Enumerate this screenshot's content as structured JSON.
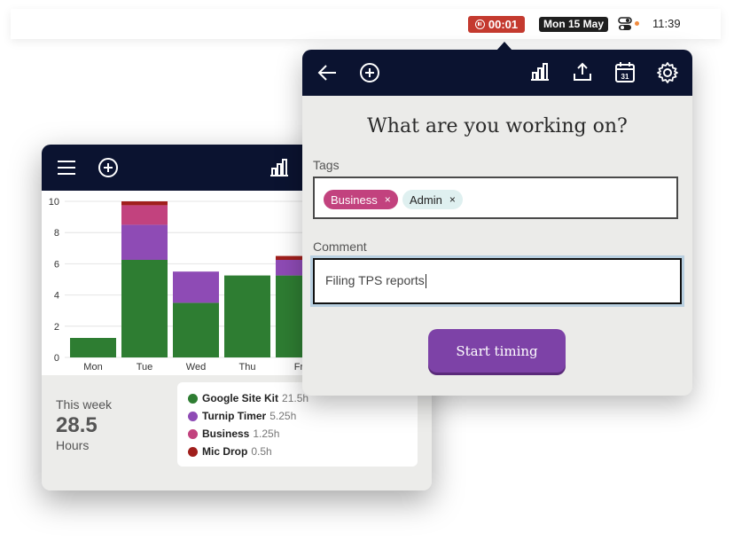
{
  "menubar": {
    "timer": "00:01",
    "date": "Mon 15 May",
    "time": "11:39",
    "icons": [
      "stop-timer-icon",
      "control-center-icon"
    ]
  },
  "back_window": {
    "toolbar_icons": [
      "menu-icon",
      "add-icon",
      "stats-icon"
    ],
    "summary": {
      "label": "This week",
      "value": "28.5",
      "unit": "Hours"
    },
    "legend": [
      {
        "name": "Google Site Kit",
        "hours": "21.5h",
        "color": "#2e7d32"
      },
      {
        "name": "Turnip Timer",
        "hours": "5.25h",
        "color": "#8e4bb5"
      },
      {
        "name": "Business",
        "hours": "1.25h",
        "color": "#c2427e"
      },
      {
        "name": "Mic Drop",
        "hours": "0.5h",
        "color": "#a01f1c"
      }
    ]
  },
  "chart_data": {
    "type": "bar",
    "stacked": true,
    "categories": [
      "Mon",
      "Tue",
      "Wed",
      "Thu",
      "Fr"
    ],
    "ylim": [
      0,
      10
    ],
    "yticks": [
      0,
      2,
      4,
      6,
      8,
      10
    ],
    "series": [
      {
        "name": "Google Site Kit",
        "color": "#2e7d32",
        "values": [
          1.25,
          6.25,
          3.5,
          5.25,
          5.25
        ]
      },
      {
        "name": "Turnip Timer",
        "color": "#8e4bb5",
        "values": [
          0,
          2.25,
          2.0,
          0,
          1.0
        ]
      },
      {
        "name": "Business",
        "color": "#c2427e",
        "values": [
          0,
          1.25,
          0,
          0,
          0
        ]
      },
      {
        "name": "Mic Drop",
        "color": "#a01f1c",
        "values": [
          0,
          0.25,
          0,
          0,
          0.25
        ]
      }
    ],
    "grid": true
  },
  "front_window": {
    "toolbar_icons": [
      "back-arrow-icon",
      "add-icon",
      "stats-icon",
      "export-icon",
      "calendar-icon",
      "settings-icon"
    ],
    "calendar_day": "31",
    "heading": "What are you working on?",
    "tags_label": "Tags",
    "tags": [
      {
        "label": "Business",
        "remove": "×"
      },
      {
        "label": "Admin",
        "remove": "×"
      }
    ],
    "comment_label": "Comment",
    "comment_value": "Filing TPS reports",
    "start_button": "Start timing"
  }
}
